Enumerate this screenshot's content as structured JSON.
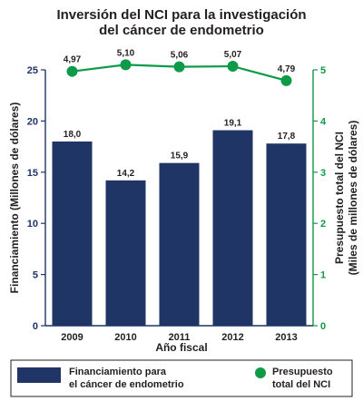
{
  "chart_data": {
    "type": "bar",
    "title_lines": [
      "Inversión del NCI para la investigación",
      "del cáncer de endometrio"
    ],
    "categories": [
      "2009",
      "2010",
      "2011",
      "2012",
      "2013"
    ],
    "xlabel": "Año fiscal",
    "ylabel_left": "Financiamiento (Millones de dólares)",
    "ylabel_right_lines": [
      "Presupuesto total del NCI",
      "(Miles de millones de dólares)"
    ],
    "ylim_left": [
      0,
      25
    ],
    "ylim_right": [
      0,
      5
    ],
    "yticks_left": [
      "0",
      "5",
      "10",
      "15",
      "20",
      "25"
    ],
    "yticks_right": [
      "0",
      "1",
      "2",
      "3",
      "4",
      "5"
    ],
    "grid": false,
    "series": [
      {
        "name": "Financiamiento para el cáncer de endometrio",
        "kind": "bar",
        "axis": "left",
        "color": "#1f3566",
        "values": [
          18.0,
          14.2,
          15.9,
          19.1,
          17.8
        ],
        "labels": [
          "18,0",
          "14,2",
          "15,9",
          "19,1",
          "17,8"
        ]
      },
      {
        "name": "Presupuesto total del NCI",
        "kind": "line",
        "axis": "right",
        "color": "#0e9a48",
        "values": [
          4.97,
          5.1,
          5.06,
          5.07,
          4.79
        ],
        "labels": [
          "4,97",
          "5,10",
          "5,06",
          "5,07",
          "4,79"
        ]
      }
    ],
    "legend": {
      "placement": "bottom",
      "bar_lines": [
        "Financiamiento para",
        "el cáncer de endometrio"
      ],
      "line_lines": [
        "Presupuesto",
        "total del NCI"
      ]
    },
    "colors": {
      "left_axis": "#1f3566",
      "right_axis": "#0e9a48",
      "text": "#231f20"
    }
  }
}
